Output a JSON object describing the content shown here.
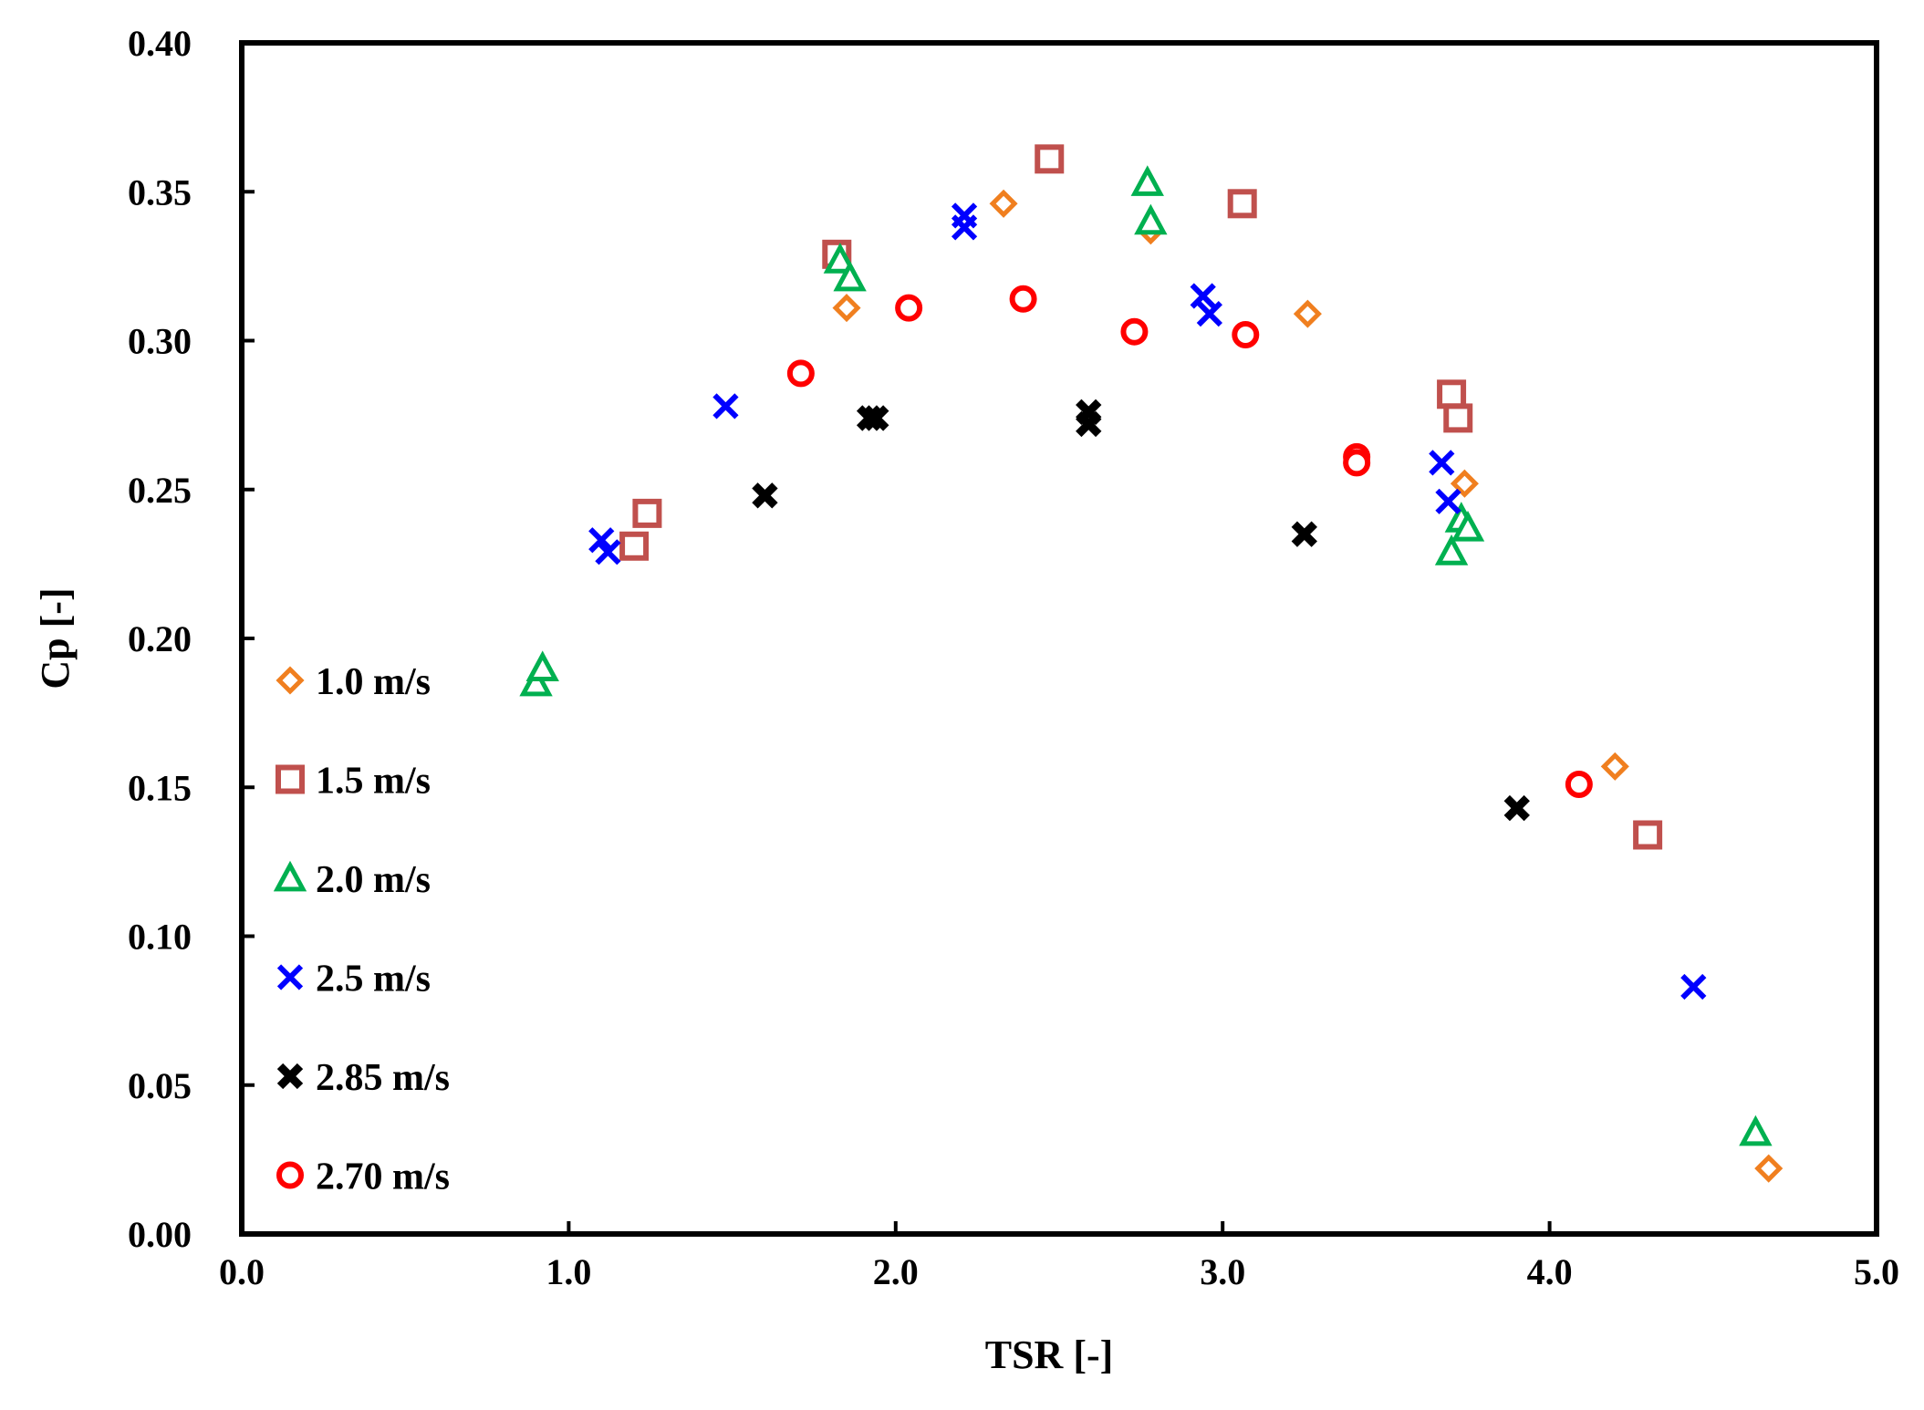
{
  "chart_data": {
    "type": "scatter",
    "title": "",
    "xlabel": "TSR [-]",
    "ylabel": "Cp [-]",
    "xlim": [
      0,
      5
    ],
    "ylim": [
      0,
      0.4
    ],
    "xticks": [
      "0.0",
      "1.0",
      "2.0",
      "3.0",
      "4.0",
      "5.0"
    ],
    "yticks": [
      "0.00",
      "0.05",
      "0.10",
      "0.15",
      "0.20",
      "0.25",
      "0.30",
      "0.35",
      "0.40"
    ],
    "grid": false,
    "legend_position": "left-middle",
    "series": [
      {
        "name": "1.0 m/s",
        "marker": "diamond",
        "color": "#f07f1f",
        "points": [
          [
            1.85,
            0.311
          ],
          [
            2.33,
            0.346
          ],
          [
            2.78,
            0.337
          ],
          [
            3.26,
            0.309
          ],
          [
            3.74,
            0.252
          ],
          [
            4.2,
            0.157
          ],
          [
            4.67,
            0.022
          ]
        ]
      },
      {
        "name": "1.5 m/s",
        "marker": "square",
        "color": "#c0504d",
        "points": [
          [
            1.2,
            0.231
          ],
          [
            1.24,
            0.242
          ],
          [
            1.82,
            0.329
          ],
          [
            2.47,
            0.361
          ],
          [
            3.06,
            0.346
          ],
          [
            3.7,
            0.282
          ],
          [
            3.72,
            0.274
          ],
          [
            4.3,
            0.134
          ]
        ]
      },
      {
        "name": "2.0 m/s",
        "marker": "triangle",
        "color": "#00b050",
        "points": [
          [
            0.9,
            0.185
          ],
          [
            0.92,
            0.19
          ],
          [
            1.83,
            0.327
          ],
          [
            1.86,
            0.321
          ],
          [
            2.77,
            0.353
          ],
          [
            2.78,
            0.34
          ],
          [
            3.7,
            0.229
          ],
          [
            3.73,
            0.24
          ],
          [
            3.75,
            0.237
          ],
          [
            4.63,
            0.034
          ]
        ]
      },
      {
        "name": "2.5 m/s",
        "marker": "x",
        "color": "#0000ff",
        "points": [
          [
            1.1,
            0.233
          ],
          [
            1.12,
            0.229
          ],
          [
            1.48,
            0.278
          ],
          [
            2.21,
            0.342
          ],
          [
            2.21,
            0.338
          ],
          [
            2.94,
            0.315
          ],
          [
            2.96,
            0.309
          ],
          [
            3.67,
            0.259
          ],
          [
            3.69,
            0.246
          ],
          [
            4.44,
            0.083
          ]
        ]
      },
      {
        "name": "2.85 m/s",
        "marker": "thick-x",
        "color": "#000000",
        "points": [
          [
            1.6,
            0.248
          ],
          [
            1.92,
            0.274
          ],
          [
            1.94,
            0.274
          ],
          [
            2.59,
            0.276
          ],
          [
            2.59,
            0.272
          ],
          [
            3.25,
            0.235
          ],
          [
            3.9,
            0.143
          ]
        ]
      },
      {
        "name": "2.70 m/s",
        "marker": "circle",
        "color": "#ff0000",
        "points": [
          [
            1.71,
            0.289
          ],
          [
            2.04,
            0.311
          ],
          [
            2.39,
            0.314
          ],
          [
            2.73,
            0.303
          ],
          [
            3.07,
            0.302
          ],
          [
            3.41,
            0.261
          ],
          [
            3.41,
            0.259
          ],
          [
            4.09,
            0.151
          ]
        ]
      }
    ]
  }
}
